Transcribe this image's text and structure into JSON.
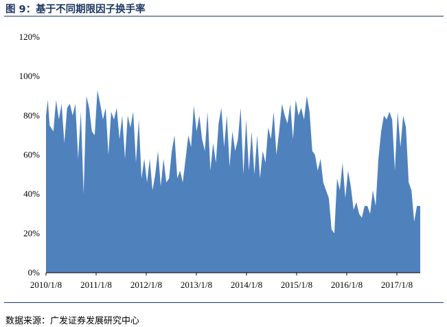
{
  "figure": {
    "title": "图 9：基于不同期限因子换手率",
    "source": "数据来源：广发证券发展研究中心"
  },
  "colors": {
    "area": "#4f81bd",
    "title": "#1f3864"
  },
  "chart_data": {
    "type": "area",
    "title": "",
    "xlabel": "",
    "ylabel": "",
    "ylim": [
      0,
      1.2
    ],
    "xlim": [
      "2010-01-08",
      "2017-10-31"
    ],
    "yticks": [
      0,
      0.2,
      0.4,
      0.6,
      0.8,
      1.0,
      1.2
    ],
    "ytick_labels": [
      "0%",
      "20%",
      "40%",
      "60%",
      "80%",
      "100%",
      "120%"
    ],
    "xtick_labels": [
      "2010/1/8",
      "2011/1/8",
      "2012/1/8",
      "2013/1/8",
      "2014/1/8",
      "2015/1/8",
      "2016/1/8",
      "2017/1/8"
    ],
    "grid": false,
    "legend": "none",
    "series": [
      {
        "x": [
          "2010-01-08",
          "2010-01-22",
          "2010-02-05",
          "2010-03-05",
          "2010-03-26",
          "2010-04-16",
          "2010-05-07",
          "2010-05-28",
          "2010-06-18",
          "2010-07-09",
          "2010-07-30",
          "2010-08-20",
          "2010-09-10",
          "2010-10-01",
          "2010-10-22",
          "2010-11-12",
          "2010-12-03",
          "2010-12-24",
          "2011-01-14",
          "2011-02-04",
          "2011-02-25",
          "2011-03-18",
          "2011-04-08",
          "2011-04-29",
          "2011-05-20",
          "2011-06-10",
          "2011-07-01",
          "2011-07-22",
          "2011-08-12",
          "2011-09-02",
          "2011-09-23",
          "2011-10-14",
          "2011-11-04",
          "2011-11-25",
          "2011-12-16",
          "2012-01-06",
          "2012-01-27",
          "2012-02-17",
          "2012-03-09",
          "2012-03-30",
          "2012-04-20",
          "2012-05-11",
          "2012-06-01",
          "2012-06-22",
          "2012-07-13",
          "2012-08-03",
          "2012-08-24",
          "2012-09-14",
          "2012-10-05",
          "2012-10-26",
          "2012-11-16",
          "2012-12-07",
          "2012-12-28",
          "2013-01-18",
          "2013-02-08",
          "2013-03-01",
          "2013-03-22",
          "2013-04-12",
          "2013-05-03",
          "2013-05-24",
          "2013-06-14",
          "2013-07-05",
          "2013-07-26",
          "2013-08-16",
          "2013-09-06",
          "2013-09-27",
          "2013-10-18",
          "2013-11-08",
          "2013-11-29",
          "2013-12-20",
          "2014-01-10",
          "2014-01-31",
          "2014-02-21",
          "2014-03-14",
          "2014-04-04",
          "2014-04-25",
          "2014-05-16",
          "2014-06-06",
          "2014-06-27",
          "2014-07-18",
          "2014-08-08",
          "2014-08-29",
          "2014-09-19",
          "2014-10-10",
          "2014-10-31",
          "2014-11-21",
          "2014-12-12",
          "2015-01-02",
          "2015-01-23",
          "2015-02-13",
          "2015-03-06",
          "2015-03-27",
          "2015-04-17",
          "2015-05-08",
          "2015-05-29",
          "2015-06-19",
          "2015-07-10",
          "2015-07-31",
          "2015-08-21",
          "2015-09-11",
          "2015-10-02",
          "2015-10-23",
          "2015-11-13",
          "2015-12-04",
          "2015-12-25",
          "2016-01-15",
          "2016-02-05",
          "2016-02-26",
          "2016-03-18",
          "2016-04-08",
          "2016-04-29",
          "2016-05-20",
          "2016-06-10",
          "2016-07-01",
          "2016-07-22",
          "2016-08-12",
          "2016-09-02",
          "2016-09-23",
          "2016-10-14",
          "2016-11-04",
          "2016-11-25",
          "2016-12-16",
          "2017-01-06",
          "2017-01-27",
          "2017-02-17",
          "2017-03-10",
          "2017-03-31",
          "2017-04-21",
          "2017-05-12",
          "2017-06-02",
          "2017-06-23",
          "2017-07-14",
          "2017-08-04",
          "2017-08-25",
          "2017-09-15",
          "2017-10-06",
          "2017-10-31"
        ],
        "values": [
          0.8,
          0.88,
          0.75,
          0.72,
          0.88,
          0.78,
          0.86,
          0.66,
          0.84,
          0.86,
          0.8,
          0.86,
          0.58,
          0.82,
          0.4,
          0.9,
          0.84,
          0.72,
          0.7,
          0.93,
          0.86,
          0.78,
          0.84,
          0.6,
          0.82,
          0.78,
          0.84,
          0.68,
          0.8,
          0.58,
          0.8,
          0.74,
          0.82,
          0.56,
          0.78,
          0.48,
          0.58,
          0.46,
          0.58,
          0.42,
          0.5,
          0.62,
          0.44,
          0.58,
          0.46,
          0.48,
          0.62,
          0.7,
          0.48,
          0.52,
          0.46,
          0.58,
          0.7,
          0.64,
          0.85,
          0.72,
          0.8,
          0.68,
          0.62,
          0.82,
          0.52,
          0.66,
          0.56,
          0.76,
          0.84,
          0.64,
          0.8,
          0.54,
          0.72,
          0.62,
          0.68,
          0.84,
          0.5,
          0.78,
          0.52,
          0.72,
          0.5,
          0.7,
          0.48,
          0.62,
          0.56,
          0.74,
          0.68,
          0.82,
          0.6,
          0.72,
          0.86,
          0.8,
          0.76,
          0.86,
          0.68,
          0.88,
          0.8,
          0.84,
          0.78,
          0.9,
          0.82,
          0.62,
          0.6,
          0.52,
          0.58,
          0.46,
          0.42,
          0.38,
          0.22,
          0.2,
          0.48,
          0.42,
          0.56,
          0.38,
          0.52,
          0.44,
          0.32,
          0.36,
          0.3,
          0.28,
          0.34,
          0.34,
          0.3,
          0.42,
          0.34,
          0.58,
          0.72,
          0.8,
          0.78,
          0.82,
          0.78,
          0.52,
          0.82,
          0.64,
          0.8,
          0.74,
          0.46,
          0.42,
          0.26,
          0.34,
          0.34
        ]
      }
    ]
  }
}
